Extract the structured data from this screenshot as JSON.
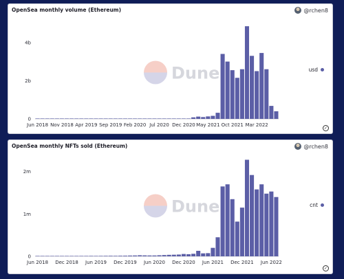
{
  "charts": [
    {
      "title": "OpenSea monthly volume (Ethereum)",
      "author": "@rchen8",
      "legend": "usd",
      "watermark": "Dune",
      "icons": {
        "author": "avatar",
        "status": "check-circle-icon",
        "watermark": "dune-logo"
      },
      "colors": {
        "bar": "#5b5ea6"
      }
    },
    {
      "title": "OpenSea monthly NFTs sold (Ethereum)",
      "author": "@rchen8",
      "legend": "cnt",
      "watermark": "Dune",
      "icons": {
        "author": "avatar",
        "status": "check-circle-icon",
        "watermark": "dune-logo"
      },
      "colors": {
        "bar": "#5b5ea6"
      }
    }
  ],
  "chart_data": [
    {
      "type": "bar",
      "title": "OpenSea monthly volume (Ethereum)",
      "series": [
        {
          "name": "usd"
        }
      ],
      "x_start": "2018-06",
      "x_ticks": [
        "Jun 2018",
        "Nov 2018",
        "Apr 2019",
        "Sep 2019",
        "Feb 2020",
        "Jul 2020",
        "Dec 2020",
        "May 2021",
        "Oct 2021",
        "Mar 2022"
      ],
      "y_ticks": [
        0,
        2000000000,
        4000000000
      ],
      "y_tick_labels": [
        "0",
        "2b",
        "4b"
      ],
      "ylim": [
        0,
        5000000000
      ],
      "values": [
        1000000,
        1000000,
        1000000,
        1000000,
        1000000,
        1000000,
        1000000,
        1000000,
        1000000,
        1000000,
        1000000,
        1000000,
        1000000,
        1000000,
        1000000,
        1000000,
        1000000,
        1000000,
        1000000,
        1000000,
        1000000,
        1000000,
        1000000,
        1000000,
        1000000,
        1000000,
        1000000,
        1000000,
        1000000,
        1000000,
        5000000,
        20000000,
        80000000,
        120000000,
        95000000,
        130000000,
        160000000,
        320000000,
        3400000000,
        3000000000,
        2550000000,
        2150000000,
        2600000000,
        4850000000,
        3300000000,
        2500000000,
        3450000000,
        2600000000,
        680000000,
        400000000
      ],
      "legend_position": "right",
      "grid": false
    },
    {
      "type": "bar",
      "title": "OpenSea monthly NFTs sold (Ethereum)",
      "series": [
        {
          "name": "cnt"
        }
      ],
      "x_start": "2018-06",
      "x_ticks": [
        "Jun 2018",
        "Dec 2018",
        "Jun 2019",
        "Dec 2019",
        "Jun 2020",
        "Dec 2020",
        "Jun 2021",
        "Dec 2021",
        "Jun 2022"
      ],
      "y_ticks": [
        0,
        1000000,
        2000000
      ],
      "y_tick_labels": [
        "0",
        "1m",
        "2m"
      ],
      "ylim": [
        0,
        2450000
      ],
      "values": [
        8000,
        7000,
        7000,
        9000,
        10000,
        8000,
        9000,
        8000,
        9000,
        10000,
        10000,
        11000,
        10000,
        11000,
        12000,
        13000,
        12000,
        14000,
        15000,
        18000,
        20000,
        25000,
        22000,
        20000,
        20000,
        25000,
        30000,
        35000,
        38000,
        42000,
        55000,
        50000,
        60000,
        130000,
        70000,
        75000,
        200000,
        450000,
        1650000,
        1700000,
        1350000,
        820000,
        1150000,
        2280000,
        1920000,
        1580000,
        1700000,
        1480000,
        1530000,
        1400000
      ],
      "legend_position": "right",
      "grid": false
    }
  ]
}
